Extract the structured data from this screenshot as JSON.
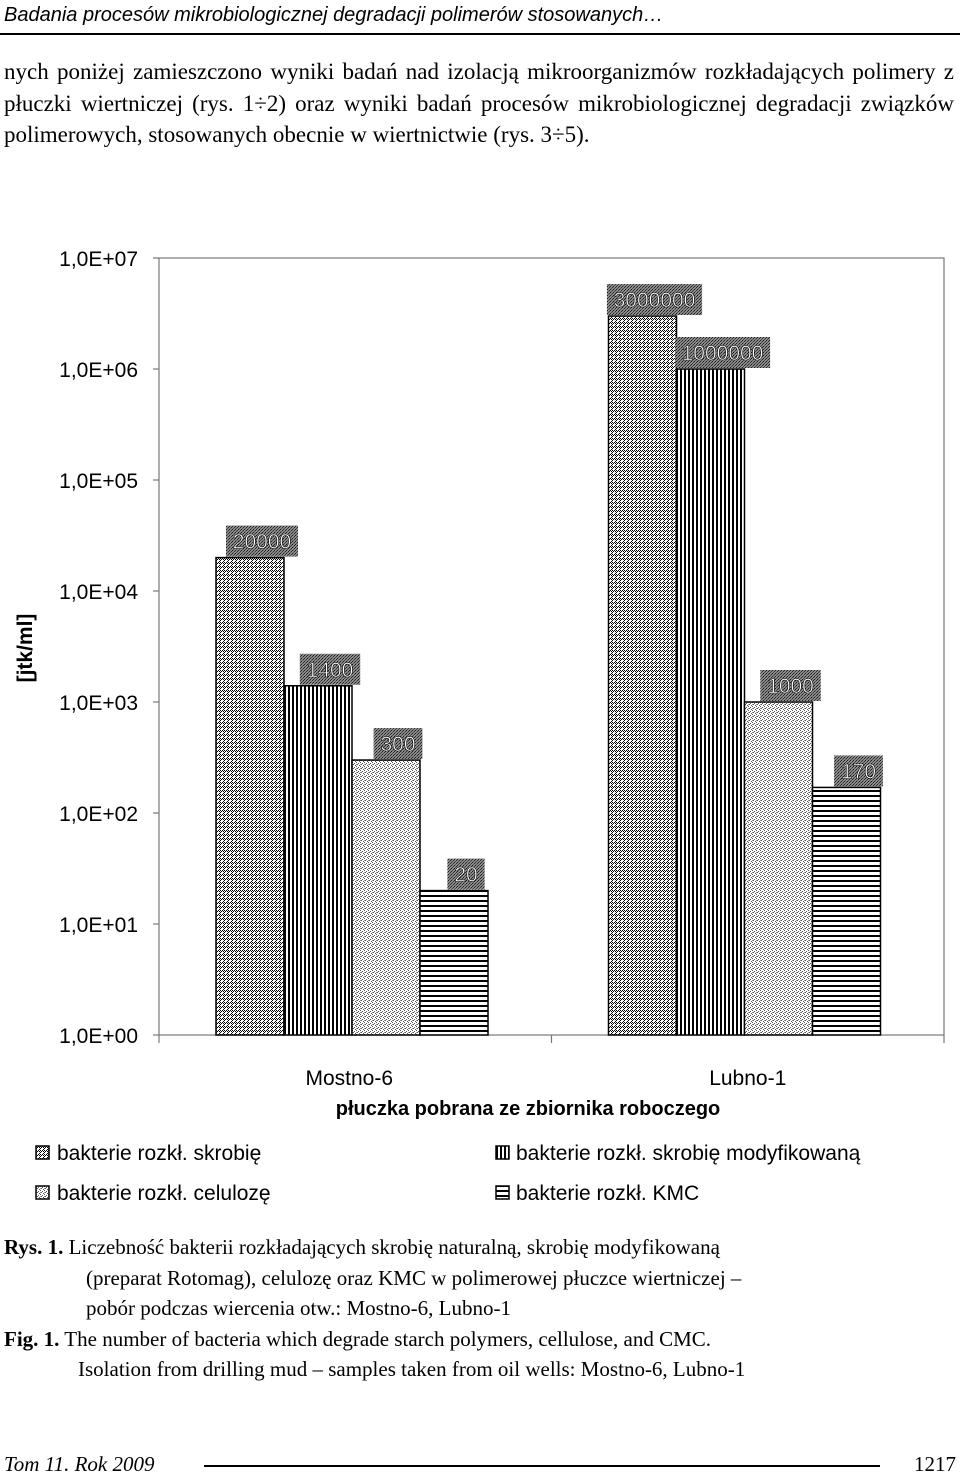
{
  "header": {
    "title": "Badania procesów mikrobiologicznej degradacji polimerów stosowanych…"
  },
  "intro": {
    "text": "nych poniżej zamieszczono wyniki badań nad izolacją mikroorganizmów rozkładających polimery z płuczki wiertniczej (rys. 1÷2) oraz wyniki badań procesów mikrobiologicznej degradacji związków polimerowych, stosowanych obecnie w wiertnictwie (rys. 3÷5)."
  },
  "chart_data": {
    "type": "bar",
    "yscale": "log",
    "ylim": [
      1,
      10000000
    ],
    "yticks": [
      "1,0E+00",
      "1,0E+01",
      "1,0E+02",
      "1,0E+03",
      "1,0E+04",
      "1,0E+05",
      "1,0E+06",
      "1,0E+07"
    ],
    "ylabel": "[jtk/ml]",
    "xlabel": "płuczka pobrana ze zbiornika roboczego",
    "categories": [
      "Mostno-6",
      "Lubno-1"
    ],
    "series": [
      {
        "name": "bakterie rozkł. skrobię",
        "values": [
          20000,
          3000000
        ],
        "labels": [
          "20000",
          "3000000"
        ]
      },
      {
        "name": "bakterie rozkł. skrobię modyfikowaną",
        "values": [
          1400,
          1000000
        ],
        "labels": [
          "1400",
          "1000000"
        ]
      },
      {
        "name": "bakterie rozkł. celulozę",
        "values": [
          300,
          1000
        ],
        "labels": [
          "300",
          "1000"
        ]
      },
      {
        "name": "bakterie rozkł. KMC",
        "values": [
          20,
          170
        ],
        "labels": [
          "20",
          "170"
        ]
      }
    ],
    "legend_position": "bottom",
    "grid": false
  },
  "caption": {
    "pl_label": "Rys. 1.",
    "pl_line1": "Liczebność bakterii rozkładających skrobię naturalną, skrobię modyfikowaną",
    "pl_line2": "(preparat Rotomag), celulozę oraz KMC w polimerowej płuczce wiertniczej –",
    "pl_line3": "pobór podczas wiercenia otw.: Mostno-6, Lubno-1",
    "en_label": "Fig. 1.",
    "en_line1": "The number of bacteria which degrade starch polymers, cellulose, and CMC.",
    "en_line2": "Isolation from drilling mud – samples taken from oil wells: Mostno-6, Lubno-1"
  },
  "footer": {
    "left": "Tom 11. Rok 2009",
    "page": "1217"
  }
}
